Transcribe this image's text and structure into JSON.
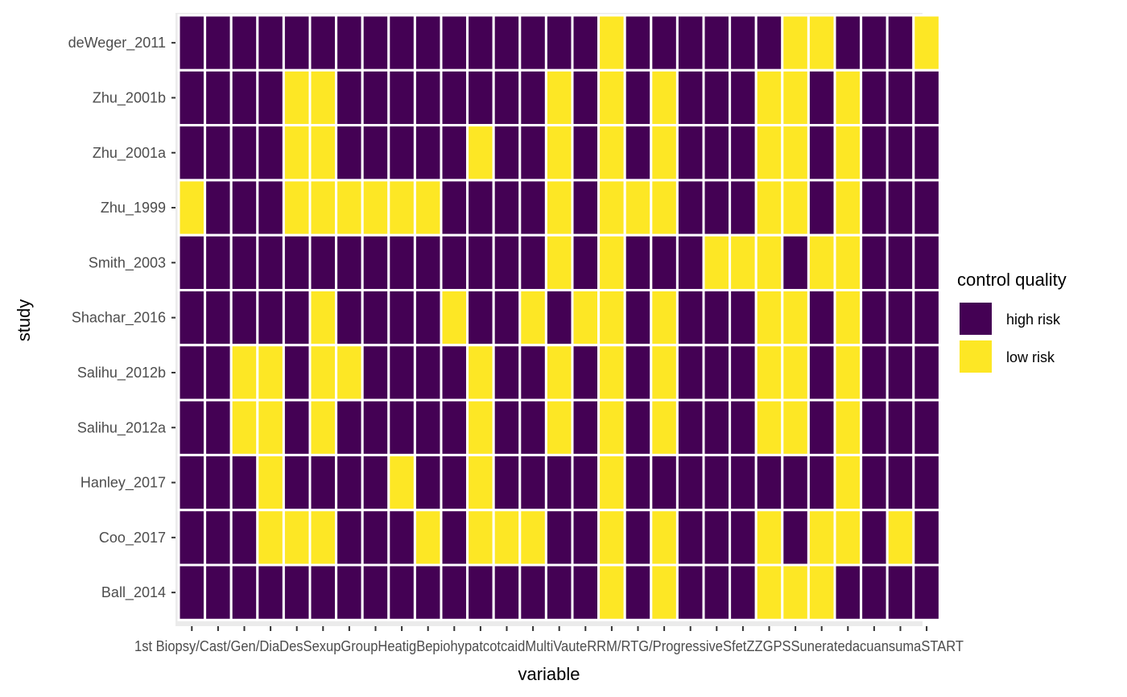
{
  "chart_data": {
    "type": "heatmap",
    "title": "",
    "xlabel": "variable",
    "ylabel": "study",
    "x_tick_text": "1st Biopsy/Cast/Gen/DiaDesSexupGroupHeatigBepiohypatcotcaidMultiVauteRRM/RTG/ProgressiveSfetZZGPSSuneratedacuansumaSTART",
    "rows_top_to_bottom": [
      "deWeger_2011",
      "Zhu_2001b",
      "Zhu_2001a",
      "Zhu_1999",
      "Smith_2003",
      "Shachar_2016",
      "Salihu_2012b",
      "Salihu_2012a",
      "Hanley_2017",
      "Coo_2017",
      "Ball_2014"
    ],
    "n_columns": 29,
    "values_note": "1 = low risk, 0 = high risk",
    "values": [
      [
        0,
        0,
        0,
        0,
        0,
        0,
        0,
        0,
        0,
        0,
        0,
        0,
        0,
        0,
        0,
        0,
        1,
        0,
        0,
        0,
        0,
        0,
        0,
        1,
        1,
        0,
        0,
        0,
        1
      ],
      [
        0,
        0,
        0,
        0,
        1,
        1,
        0,
        0,
        0,
        0,
        0,
        0,
        0,
        0,
        1,
        0,
        1,
        0,
        1,
        0,
        0,
        0,
        1,
        1,
        0,
        1,
        0,
        0,
        0
      ],
      [
        0,
        0,
        0,
        0,
        1,
        1,
        0,
        0,
        0,
        0,
        0,
        1,
        0,
        0,
        1,
        0,
        1,
        0,
        1,
        0,
        0,
        0,
        1,
        1,
        0,
        1,
        0,
        0,
        0
      ],
      [
        1,
        0,
        0,
        0,
        1,
        1,
        1,
        1,
        1,
        1,
        0,
        0,
        0,
        0,
        1,
        0,
        1,
        1,
        1,
        0,
        0,
        0,
        1,
        1,
        0,
        1,
        0,
        0,
        0
      ],
      [
        0,
        0,
        0,
        0,
        0,
        0,
        0,
        0,
        0,
        0,
        0,
        0,
        0,
        0,
        1,
        0,
        1,
        0,
        0,
        0,
        1,
        1,
        1,
        0,
        1,
        1,
        0,
        0,
        0
      ],
      [
        0,
        0,
        0,
        0,
        0,
        1,
        0,
        0,
        0,
        0,
        1,
        0,
        0,
        1,
        0,
        1,
        1,
        0,
        1,
        0,
        0,
        0,
        1,
        1,
        0,
        1,
        0,
        0,
        0
      ],
      [
        0,
        0,
        1,
        1,
        0,
        1,
        1,
        0,
        0,
        0,
        0,
        1,
        0,
        0,
        1,
        0,
        1,
        0,
        1,
        0,
        0,
        0,
        1,
        1,
        0,
        1,
        0,
        0,
        0
      ],
      [
        0,
        0,
        1,
        1,
        0,
        1,
        0,
        0,
        0,
        0,
        0,
        1,
        0,
        0,
        1,
        0,
        1,
        0,
        1,
        0,
        0,
        0,
        1,
        1,
        0,
        1,
        0,
        0,
        0
      ],
      [
        0,
        0,
        0,
        1,
        0,
        0,
        0,
        0,
        1,
        0,
        0,
        1,
        0,
        0,
        0,
        0,
        1,
        0,
        0,
        0,
        0,
        0,
        0,
        0,
        0,
        1,
        0,
        0,
        0
      ],
      [
        0,
        0,
        0,
        1,
        1,
        1,
        0,
        0,
        0,
        1,
        0,
        1,
        1,
        1,
        0,
        0,
        1,
        0,
        1,
        0,
        0,
        0,
        1,
        0,
        1,
        1,
        0,
        1,
        0
      ],
      [
        0,
        0,
        0,
        0,
        0,
        0,
        0,
        0,
        0,
        0,
        0,
        0,
        0,
        0,
        0,
        0,
        1,
        0,
        1,
        0,
        0,
        0,
        1,
        1,
        1,
        0,
        0,
        0,
        0
      ]
    ],
    "legend": {
      "title": "control quality",
      "position": "right",
      "entries": [
        {
          "label": "high risk",
          "color": "#440154"
        },
        {
          "label": "low risk",
          "color": "#FDE725"
        }
      ]
    },
    "grid": true,
    "panel_background": "#EBEBEB",
    "tile_border": "#ffffff"
  }
}
